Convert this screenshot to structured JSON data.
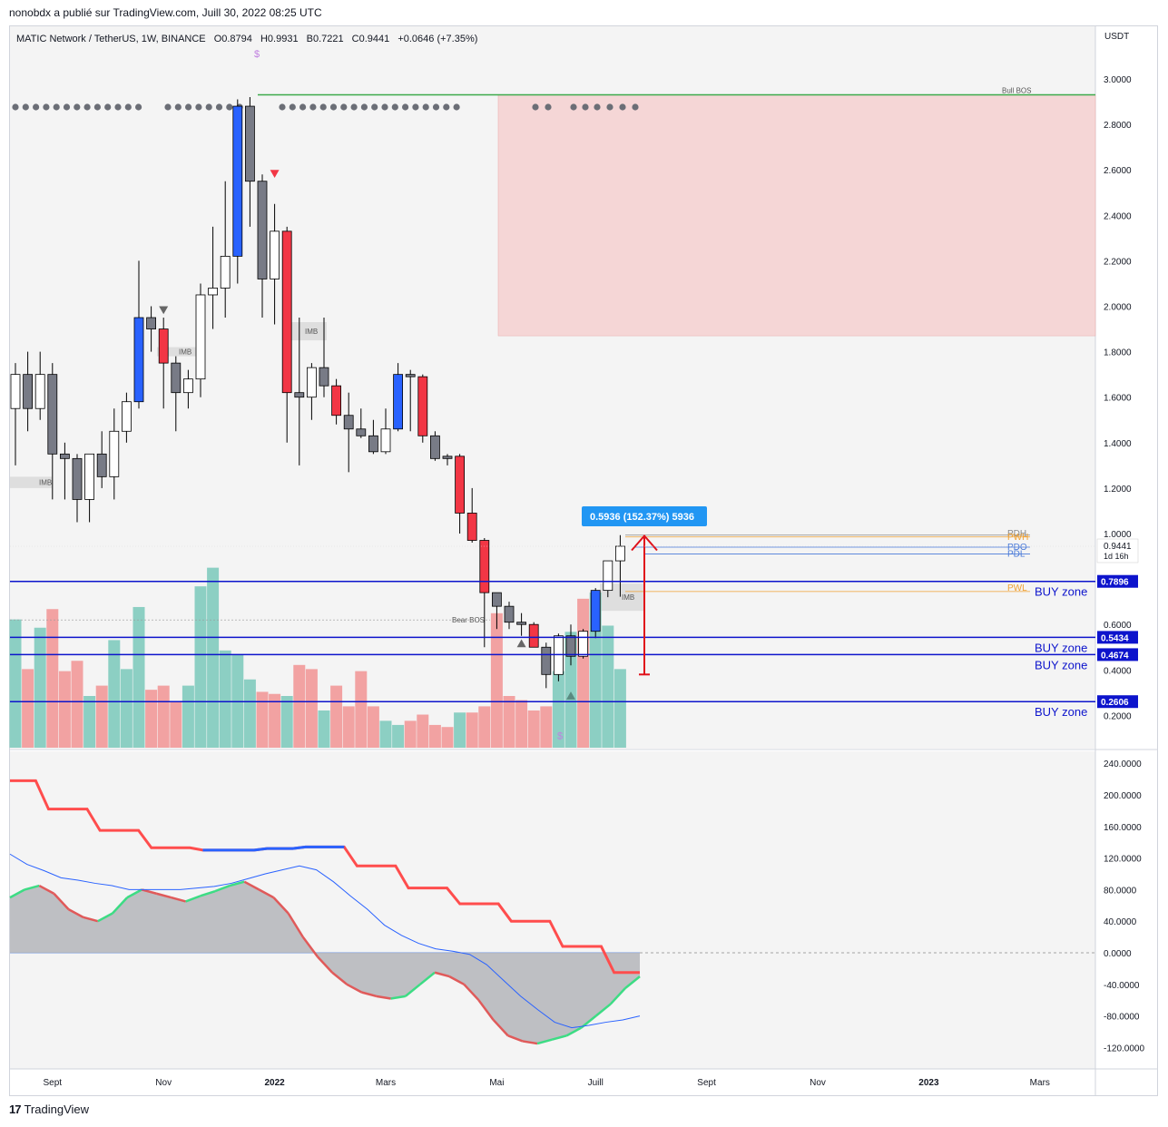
{
  "header": {
    "text": "nonobdx a publié sur TradingView.com, Juill 30, 2022 08:25 UTC"
  },
  "footer": {
    "brand": "TradingView",
    "logo_glyph": "17"
  },
  "title": {
    "symbol": "MATIC Network / TetherUS, 1W, BINANCE",
    "open": "O0.8794",
    "high": "H0.9931",
    "low": "B0.7221",
    "close": "C0.9441",
    "change": "+0.0646 (+7.35%)"
  },
  "colors": {
    "bull_blue": "#2962ff",
    "bear_red": "#f23645",
    "grey_candle": "#787b86",
    "vol_green": "#8ccfc3",
    "vol_red": "#f2a2a2",
    "zone": "#f5d6d6",
    "blue_line": "#0d14cc",
    "green_line": "#3da94a",
    "tag_bg": "#0d14cc"
  },
  "chart_data": [
    {
      "type": "candlestick",
      "y_axis_unit": "USDT",
      "ylim": [
        0.1,
        3.2
      ],
      "yticks": [
        "3.0000",
        "2.8000",
        "2.6000",
        "2.4000",
        "2.2000",
        "2.0000",
        "1.8000",
        "1.6000",
        "1.4000",
        "1.2000",
        "1.0000",
        "0.6000",
        "0.4000",
        "0.2000"
      ],
      "ytick_values": [
        3.0,
        2.8,
        2.6,
        2.4,
        2.2,
        2.0,
        1.8,
        1.6,
        1.4,
        1.2,
        1.0,
        0.6,
        0.4,
        0.2
      ],
      "x_labels": [
        "Sept",
        "Nov",
        "2022",
        "Mars",
        "Mai",
        "Juill",
        "Sept",
        "Nov",
        "2023",
        "Mars"
      ],
      "x_label_weeks": [
        3,
        12,
        21,
        30,
        39,
        47,
        56,
        65,
        74,
        83
      ],
      "candles": [
        {
          "o": 1.55,
          "h": 1.75,
          "l": 1.3,
          "c": 1.7,
          "col": "white"
        },
        {
          "o": 1.7,
          "h": 1.8,
          "l": 1.45,
          "c": 1.55,
          "col": "grey"
        },
        {
          "o": 1.55,
          "h": 1.8,
          "l": 1.5,
          "c": 1.7,
          "col": "white"
        },
        {
          "o": 1.7,
          "h": 1.75,
          "l": 1.15,
          "c": 1.35,
          "col": "grey"
        },
        {
          "o": 1.35,
          "h": 1.4,
          "l": 1.15,
          "c": 1.33,
          "col": "grey"
        },
        {
          "o": 1.33,
          "h": 1.35,
          "l": 1.05,
          "c": 1.15,
          "col": "grey"
        },
        {
          "o": 1.15,
          "h": 1.35,
          "l": 1.05,
          "c": 1.35,
          "col": "white"
        },
        {
          "o": 1.35,
          "h": 1.45,
          "l": 1.2,
          "c": 1.25,
          "col": "grey"
        },
        {
          "o": 1.25,
          "h": 1.55,
          "l": 1.15,
          "c": 1.45,
          "col": "white"
        },
        {
          "o": 1.45,
          "h": 1.62,
          "l": 1.4,
          "c": 1.58,
          "col": "white"
        },
        {
          "o": 1.58,
          "h": 2.2,
          "l": 1.55,
          "c": 1.95,
          "col": "blue"
        },
        {
          "o": 1.95,
          "h": 2.0,
          "l": 1.8,
          "c": 1.9,
          "col": "grey"
        },
        {
          "o": 1.9,
          "h": 1.95,
          "l": 1.55,
          "c": 1.75,
          "col": "red"
        },
        {
          "o": 1.75,
          "h": 1.78,
          "l": 1.45,
          "c": 1.62,
          "col": "grey"
        },
        {
          "o": 1.62,
          "h": 1.72,
          "l": 1.55,
          "c": 1.68,
          "col": "white"
        },
        {
          "o": 1.68,
          "h": 2.1,
          "l": 1.6,
          "c": 2.05,
          "col": "white"
        },
        {
          "o": 2.05,
          "h": 2.35,
          "l": 1.9,
          "c": 2.08,
          "col": "white"
        },
        {
          "o": 2.08,
          "h": 2.55,
          "l": 1.95,
          "c": 2.22,
          "col": "white"
        },
        {
          "o": 2.22,
          "h": 2.91,
          "l": 2.1,
          "c": 2.88,
          "col": "blue"
        },
        {
          "o": 2.88,
          "h": 2.92,
          "l": 2.35,
          "c": 2.55,
          "col": "grey"
        },
        {
          "o": 2.55,
          "h": 2.58,
          "l": 1.95,
          "c": 2.12,
          "col": "grey"
        },
        {
          "o": 2.12,
          "h": 2.45,
          "l": 1.92,
          "c": 2.33,
          "col": "white"
        },
        {
          "o": 2.33,
          "h": 2.35,
          "l": 1.4,
          "c": 1.62,
          "col": "red"
        },
        {
          "o": 1.62,
          "h": 1.95,
          "l": 1.3,
          "c": 1.6,
          "col": "grey"
        },
        {
          "o": 1.6,
          "h": 1.75,
          "l": 1.5,
          "c": 1.73,
          "col": "white"
        },
        {
          "o": 1.73,
          "h": 1.95,
          "l": 1.6,
          "c": 1.65,
          "col": "grey"
        },
        {
          "o": 1.65,
          "h": 1.68,
          "l": 1.48,
          "c": 1.52,
          "col": "red"
        },
        {
          "o": 1.52,
          "h": 1.62,
          "l": 1.27,
          "c": 1.46,
          "col": "grey"
        },
        {
          "o": 1.46,
          "h": 1.55,
          "l": 1.42,
          "c": 1.43,
          "col": "grey"
        },
        {
          "o": 1.43,
          "h": 1.5,
          "l": 1.35,
          "c": 1.36,
          "col": "grey"
        },
        {
          "o": 1.36,
          "h": 1.55,
          "l": 1.35,
          "c": 1.46,
          "col": "white"
        },
        {
          "o": 1.46,
          "h": 1.75,
          "l": 1.45,
          "c": 1.7,
          "col": "blue"
        },
        {
          "o": 1.7,
          "h": 1.72,
          "l": 1.45,
          "c": 1.69,
          "col": "grey"
        },
        {
          "o": 1.69,
          "h": 1.7,
          "l": 1.4,
          "c": 1.43,
          "col": "red"
        },
        {
          "o": 1.43,
          "h": 1.45,
          "l": 1.32,
          "c": 1.33,
          "col": "grey"
        },
        {
          "o": 1.33,
          "h": 1.35,
          "l": 1.3,
          "c": 1.34,
          "col": "grey"
        },
        {
          "o": 1.34,
          "h": 1.35,
          "l": 1.0,
          "c": 1.09,
          "col": "red"
        },
        {
          "o": 1.09,
          "h": 1.2,
          "l": 0.96,
          "c": 0.97,
          "col": "red"
        },
        {
          "o": 0.97,
          "h": 0.98,
          "l": 0.5,
          "c": 0.74,
          "col": "red"
        },
        {
          "o": 0.74,
          "h": 0.74,
          "l": 0.58,
          "c": 0.68,
          "col": "grey"
        },
        {
          "o": 0.68,
          "h": 0.7,
          "l": 0.58,
          "c": 0.61,
          "col": "grey"
        },
        {
          "o": 0.61,
          "h": 0.65,
          "l": 0.55,
          "c": 0.6,
          "col": "grey"
        },
        {
          "o": 0.6,
          "h": 0.61,
          "l": 0.5,
          "c": 0.5,
          "col": "red"
        },
        {
          "o": 0.5,
          "h": 0.52,
          "l": 0.32,
          "c": 0.38,
          "col": "grey"
        },
        {
          "o": 0.38,
          "h": 0.56,
          "l": 0.35,
          "c": 0.55,
          "col": "white"
        },
        {
          "o": 0.55,
          "h": 0.6,
          "l": 0.42,
          "c": 0.46,
          "col": "grey"
        },
        {
          "o": 0.46,
          "h": 0.58,
          "l": 0.45,
          "c": 0.57,
          "col": "white"
        },
        {
          "o": 0.57,
          "h": 0.76,
          "l": 0.54,
          "c": 0.75,
          "col": "blue"
        },
        {
          "o": 0.75,
          "h": 0.88,
          "l": 0.72,
          "c": 0.88,
          "col": "white"
        },
        {
          "o": 0.88,
          "h": 0.9931,
          "l": 0.7221,
          "c": 0.9441,
          "col": "white"
        }
      ],
      "volume": [
        {
          "v": 0.62,
          "c": "g"
        },
        {
          "v": 0.38,
          "c": "r"
        },
        {
          "v": 0.58,
          "c": "g"
        },
        {
          "v": 0.67,
          "c": "r"
        },
        {
          "v": 0.37,
          "c": "r"
        },
        {
          "v": 0.42,
          "c": "r"
        },
        {
          "v": 0.25,
          "c": "g"
        },
        {
          "v": 0.3,
          "c": "r"
        },
        {
          "v": 0.52,
          "c": "g"
        },
        {
          "v": 0.38,
          "c": "g"
        },
        {
          "v": 0.68,
          "c": "g"
        },
        {
          "v": 0.28,
          "c": "r"
        },
        {
          "v": 0.3,
          "c": "r"
        },
        {
          "v": 0.22,
          "c": "r"
        },
        {
          "v": 0.3,
          "c": "g"
        },
        {
          "v": 0.78,
          "c": "g"
        },
        {
          "v": 0.87,
          "c": "g"
        },
        {
          "v": 0.47,
          "c": "g"
        },
        {
          "v": 0.45,
          "c": "g"
        },
        {
          "v": 0.33,
          "c": "g"
        },
        {
          "v": 0.27,
          "c": "r"
        },
        {
          "v": 0.26,
          "c": "r"
        },
        {
          "v": 0.25,
          "c": "g"
        },
        {
          "v": 0.4,
          "c": "r"
        },
        {
          "v": 0.38,
          "c": "r"
        },
        {
          "v": 0.18,
          "c": "g"
        },
        {
          "v": 0.3,
          "c": "r"
        },
        {
          "v": 0.2,
          "c": "r"
        },
        {
          "v": 0.37,
          "c": "r"
        },
        {
          "v": 0.2,
          "c": "r"
        },
        {
          "v": 0.13,
          "c": "g"
        },
        {
          "v": 0.11,
          "c": "g"
        },
        {
          "v": 0.13,
          "c": "r"
        },
        {
          "v": 0.16,
          "c": "r"
        },
        {
          "v": 0.11,
          "c": "r"
        },
        {
          "v": 0.1,
          "c": "r"
        },
        {
          "v": 0.17,
          "c": "g"
        },
        {
          "v": 0.17,
          "c": "r"
        },
        {
          "v": 0.2,
          "c": "r"
        },
        {
          "v": 0.65,
          "c": "r"
        },
        {
          "v": 0.25,
          "c": "r"
        },
        {
          "v": 0.23,
          "c": "r"
        },
        {
          "v": 0.18,
          "c": "r"
        },
        {
          "v": 0.2,
          "c": "r"
        },
        {
          "v": 0.37,
          "c": "g"
        },
        {
          "v": 0.56,
          "c": "g"
        },
        {
          "v": 0.72,
          "c": "r"
        },
        {
          "v": 0.75,
          "c": "g"
        },
        {
          "v": 0.59,
          "c": "g"
        },
        {
          "v": 0.38,
          "c": "g"
        }
      ],
      "levels": [
        {
          "price": 0.7896,
          "tag": "0.7896",
          "label": "BUY zone"
        },
        {
          "price": 0.5434,
          "tag": "0.5434",
          "label": "BUY zone"
        },
        {
          "price": 0.4674,
          "tag": "0.4674",
          "label": "BUY zone"
        },
        {
          "price": 0.2606,
          "tag": "0.2606",
          "label": "BUY zone"
        }
      ],
      "current_price": {
        "value": "0.9441",
        "countdown": "1d 16h"
      },
      "bull_bos": {
        "price": 2.93,
        "label": "Bull BOS"
      },
      "bear_bos": {
        "label": "Bear BOS"
      },
      "imb_label": "IMB",
      "supply_zone": {
        "top": 2.93,
        "bottom": 1.87
      },
      "measure": {
        "label": "0.5936 (152.37%) 5936",
        "from": 0.38,
        "to": 0.99
      },
      "session_labels": [
        "PDH",
        "PWH",
        "PDO",
        "PDL",
        "PWL"
      ],
      "dollar_marker": "$"
    },
    {
      "type": "line",
      "ylim": [
        -140,
        250
      ],
      "yticks": [
        "240.0000",
        "200.0000",
        "160.0000",
        "120.0000",
        "80.0000",
        "40.0000",
        "0.0000",
        "-40.0000",
        "-80.0000",
        "-120.0000"
      ],
      "ytick_values": [
        240,
        200,
        160,
        120,
        80,
        40,
        0,
        -40,
        -80,
        -120
      ],
      "oscillator": [
        70,
        80,
        85,
        75,
        55,
        45,
        40,
        50,
        70,
        80,
        75,
        70,
        65,
        72,
        78,
        85,
        90,
        80,
        70,
        50,
        20,
        -5,
        -25,
        -40,
        -50,
        -55,
        -58,
        -55,
        -40,
        -25,
        -30,
        -40,
        -60,
        -85,
        -105,
        -112,
        -115,
        -110,
        -105,
        -95,
        -80,
        -65,
        -45,
        -30
      ],
      "stepline": [
        218,
        218,
        218,
        182,
        182,
        182,
        182,
        155,
        155,
        155,
        155,
        133,
        133,
        133,
        133,
        130,
        130,
        130,
        130,
        130,
        132,
        132,
        132,
        134,
        134,
        134,
        134,
        110,
        110,
        110,
        110,
        82,
        82,
        82,
        82,
        62,
        62,
        62,
        62,
        40,
        40,
        40,
        40,
        8,
        8,
        8,
        8,
        -25,
        -25,
        -25
      ],
      "signal": [
        125,
        112,
        104,
        95,
        92,
        88,
        85,
        80,
        80,
        80,
        80,
        82,
        84,
        88,
        94,
        100,
        105,
        110,
        105,
        90,
        72,
        55,
        35,
        22,
        12,
        5,
        2,
        -2,
        -15,
        -35,
        -55,
        -72,
        -88,
        -95,
        -92,
        -88,
        -85,
        -80
      ]
    }
  ]
}
